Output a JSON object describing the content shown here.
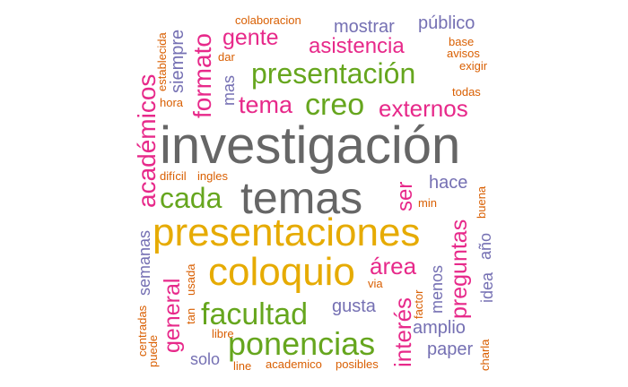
{
  "colors": {
    "gray": "#666666",
    "gold": "#e6ab02",
    "green": "#66a61e",
    "pink": "#e7298a",
    "purple": "#7570b3",
    "orange": "#d95f02"
  },
  "words": [
    {
      "text": "investigación",
      "color": "gray"
    },
    {
      "text": "temas",
      "color": "gray"
    },
    {
      "text": "presentaciones",
      "color": "gold"
    },
    {
      "text": "coloquio",
      "color": "gold"
    },
    {
      "text": "presentación",
      "color": "green"
    },
    {
      "text": "ponencias",
      "color": "green"
    },
    {
      "text": "facultad",
      "color": "green"
    },
    {
      "text": "creo",
      "color": "green"
    },
    {
      "text": "cada",
      "color": "green"
    },
    {
      "text": "gente",
      "color": "pink"
    },
    {
      "text": "asistencia",
      "color": "pink"
    },
    {
      "text": "externos",
      "color": "pink"
    },
    {
      "text": "tema",
      "color": "pink"
    },
    {
      "text": "área",
      "color": "pink"
    },
    {
      "text": "mostrar",
      "color": "purple"
    },
    {
      "text": "público",
      "color": "purple"
    },
    {
      "text": "hace",
      "color": "purple"
    },
    {
      "text": "gusta",
      "color": "purple"
    },
    {
      "text": "amplio",
      "color": "purple"
    },
    {
      "text": "paper",
      "color": "purple"
    },
    {
      "text": "solo",
      "color": "purple"
    },
    {
      "text": "colaboracion",
      "color": "orange"
    },
    {
      "text": "base",
      "color": "orange"
    },
    {
      "text": "avisos",
      "color": "orange"
    },
    {
      "text": "exigir",
      "color": "orange"
    },
    {
      "text": "todas",
      "color": "orange"
    },
    {
      "text": "dar",
      "color": "orange"
    },
    {
      "text": "hora",
      "color": "orange"
    },
    {
      "text": "difícil",
      "color": "orange"
    },
    {
      "text": "ingles",
      "color": "orange"
    },
    {
      "text": "min",
      "color": "orange"
    },
    {
      "text": "via",
      "color": "orange"
    },
    {
      "text": "libre",
      "color": "orange"
    },
    {
      "text": "line",
      "color": "orange"
    },
    {
      "text": "academico",
      "color": "orange"
    },
    {
      "text": "posibles",
      "color": "orange"
    },
    {
      "text": "académicos",
      "color": "pink"
    },
    {
      "text": "formato",
      "color": "pink"
    },
    {
      "text": "general",
      "color": "pink"
    },
    {
      "text": "ser",
      "color": "pink"
    },
    {
      "text": "preguntas",
      "color": "pink"
    },
    {
      "text": "interés",
      "color": "pink"
    },
    {
      "text": "siempre",
      "color": "purple"
    },
    {
      "text": "mas",
      "color": "purple"
    },
    {
      "text": "semanas",
      "color": "purple"
    },
    {
      "text": "menos",
      "color": "purple"
    },
    {
      "text": "idea",
      "color": "purple"
    },
    {
      "text": "año",
      "color": "purple"
    },
    {
      "text": "establecida",
      "color": "orange"
    },
    {
      "text": "usada",
      "color": "orange"
    },
    {
      "text": "centradas",
      "color": "orange"
    },
    {
      "text": "puede",
      "color": "orange"
    },
    {
      "text": "tan",
      "color": "orange"
    },
    {
      "text": "factor",
      "color": "orange"
    },
    {
      "text": "buena",
      "color": "orange"
    },
    {
      "text": "charla",
      "color": "orange"
    }
  ]
}
